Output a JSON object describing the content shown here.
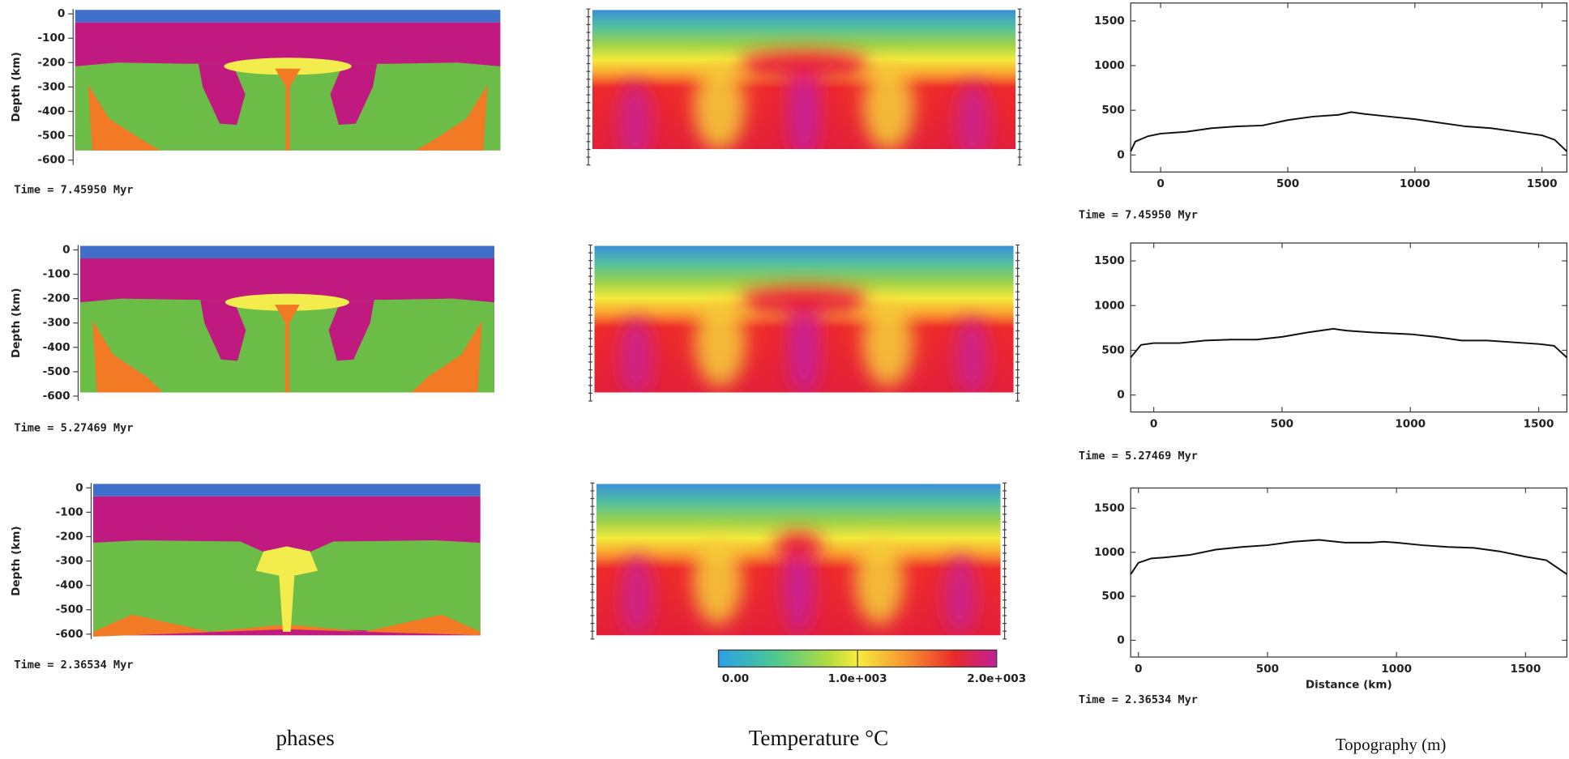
{
  "phases": {
    "caption": "phases",
    "panels": [
      {
        "ylabel": "Depth (km)",
        "time": "Time =  7.45950 Myr",
        "ylim": [
          -620,
          20
        ],
        "yticks": [
          0,
          -100,
          -200,
          -300,
          -400,
          -500,
          -600
        ]
      },
      {
        "ylabel": "Depth (km)",
        "time": "Time =  5.27469 Myr",
        "ylim": [
          -620,
          20
        ],
        "yticks": [
          0,
          -100,
          -200,
          -300,
          -400,
          -500,
          -600
        ]
      },
      {
        "ylabel": "Depth (km)",
        "time": "Time =  2.36534 Myr",
        "ylim": [
          -620,
          20
        ],
        "yticks": [
          0,
          -100,
          -200,
          -300,
          -400,
          -500,
          -600
        ]
      }
    ]
  },
  "temperature": {
    "caption": "Temperature °C",
    "colorbar": {
      "lim": [
        0,
        2000
      ],
      "ticks": [
        {
          "value": 0,
          "label": "0.00"
        },
        {
          "value": 1000,
          "label": "1.0e+003"
        },
        {
          "value": 2000,
          "label": "2.0e+003"
        }
      ]
    }
  },
  "topography_caption": "Topography (m)",
  "chart_data": [
    {
      "type": "line",
      "annotation": "Time =  7.45950 Myr",
      "color": "#111111",
      "x": [
        -118,
        -100,
        -50,
        0,
        100,
        200,
        300,
        400,
        500,
        600,
        700,
        750,
        800,
        900,
        1000,
        1100,
        1200,
        1300,
        1400,
        1500,
        1550,
        1598
      ],
      "values": [
        40,
        150,
        210,
        240,
        260,
        300,
        320,
        330,
        390,
        430,
        450,
        480,
        460,
        430,
        400,
        360,
        320,
        300,
        260,
        220,
        170,
        40
      ],
      "xlim": [
        -118,
        1598
      ],
      "ylim": [
        -190,
        1700
      ],
      "xticks": [
        0,
        500,
        1000,
        1500
      ],
      "yticks": [
        0,
        500,
        1000,
        1500
      ]
    },
    {
      "type": "line",
      "annotation": "Time =  5.27469 Myr",
      "color": "#111111",
      "x": [
        -90,
        -50,
        0,
        100,
        200,
        300,
        400,
        500,
        600,
        650,
        700,
        750,
        850,
        1000,
        1100,
        1200,
        1300,
        1400,
        1500,
        1560,
        1610
      ],
      "values": [
        420,
        560,
        580,
        580,
        610,
        620,
        620,
        650,
        700,
        720,
        740,
        720,
        700,
        680,
        650,
        610,
        610,
        590,
        570,
        550,
        420
      ],
      "xlim": [
        -90,
        1610
      ],
      "ylim": [
        -190,
        1700
      ],
      "xticks": [
        0,
        500,
        1000,
        1500
      ],
      "yticks": [
        0,
        500,
        1000,
        1500
      ]
    },
    {
      "type": "line",
      "annotation": "Time =  2.36534 Myr",
      "xlabel": "Distance (km)",
      "color": "#111111",
      "x": [
        -30,
        0,
        50,
        100,
        200,
        300,
        400,
        500,
        600,
        700,
        800,
        900,
        950,
        1000,
        1100,
        1200,
        1300,
        1400,
        1500,
        1580,
        1660
      ],
      "values": [
        750,
        880,
        930,
        940,
        970,
        1030,
        1060,
        1080,
        1120,
        1140,
        1110,
        1110,
        1120,
        1110,
        1080,
        1060,
        1050,
        1010,
        950,
        910,
        750
      ],
      "xlim": [
        -30,
        1660
      ],
      "ylim": [
        -190,
        1730
      ],
      "xticks": [
        0,
        500,
        1000,
        1500
      ],
      "yticks": [
        0,
        500,
        1000,
        1500
      ]
    }
  ]
}
